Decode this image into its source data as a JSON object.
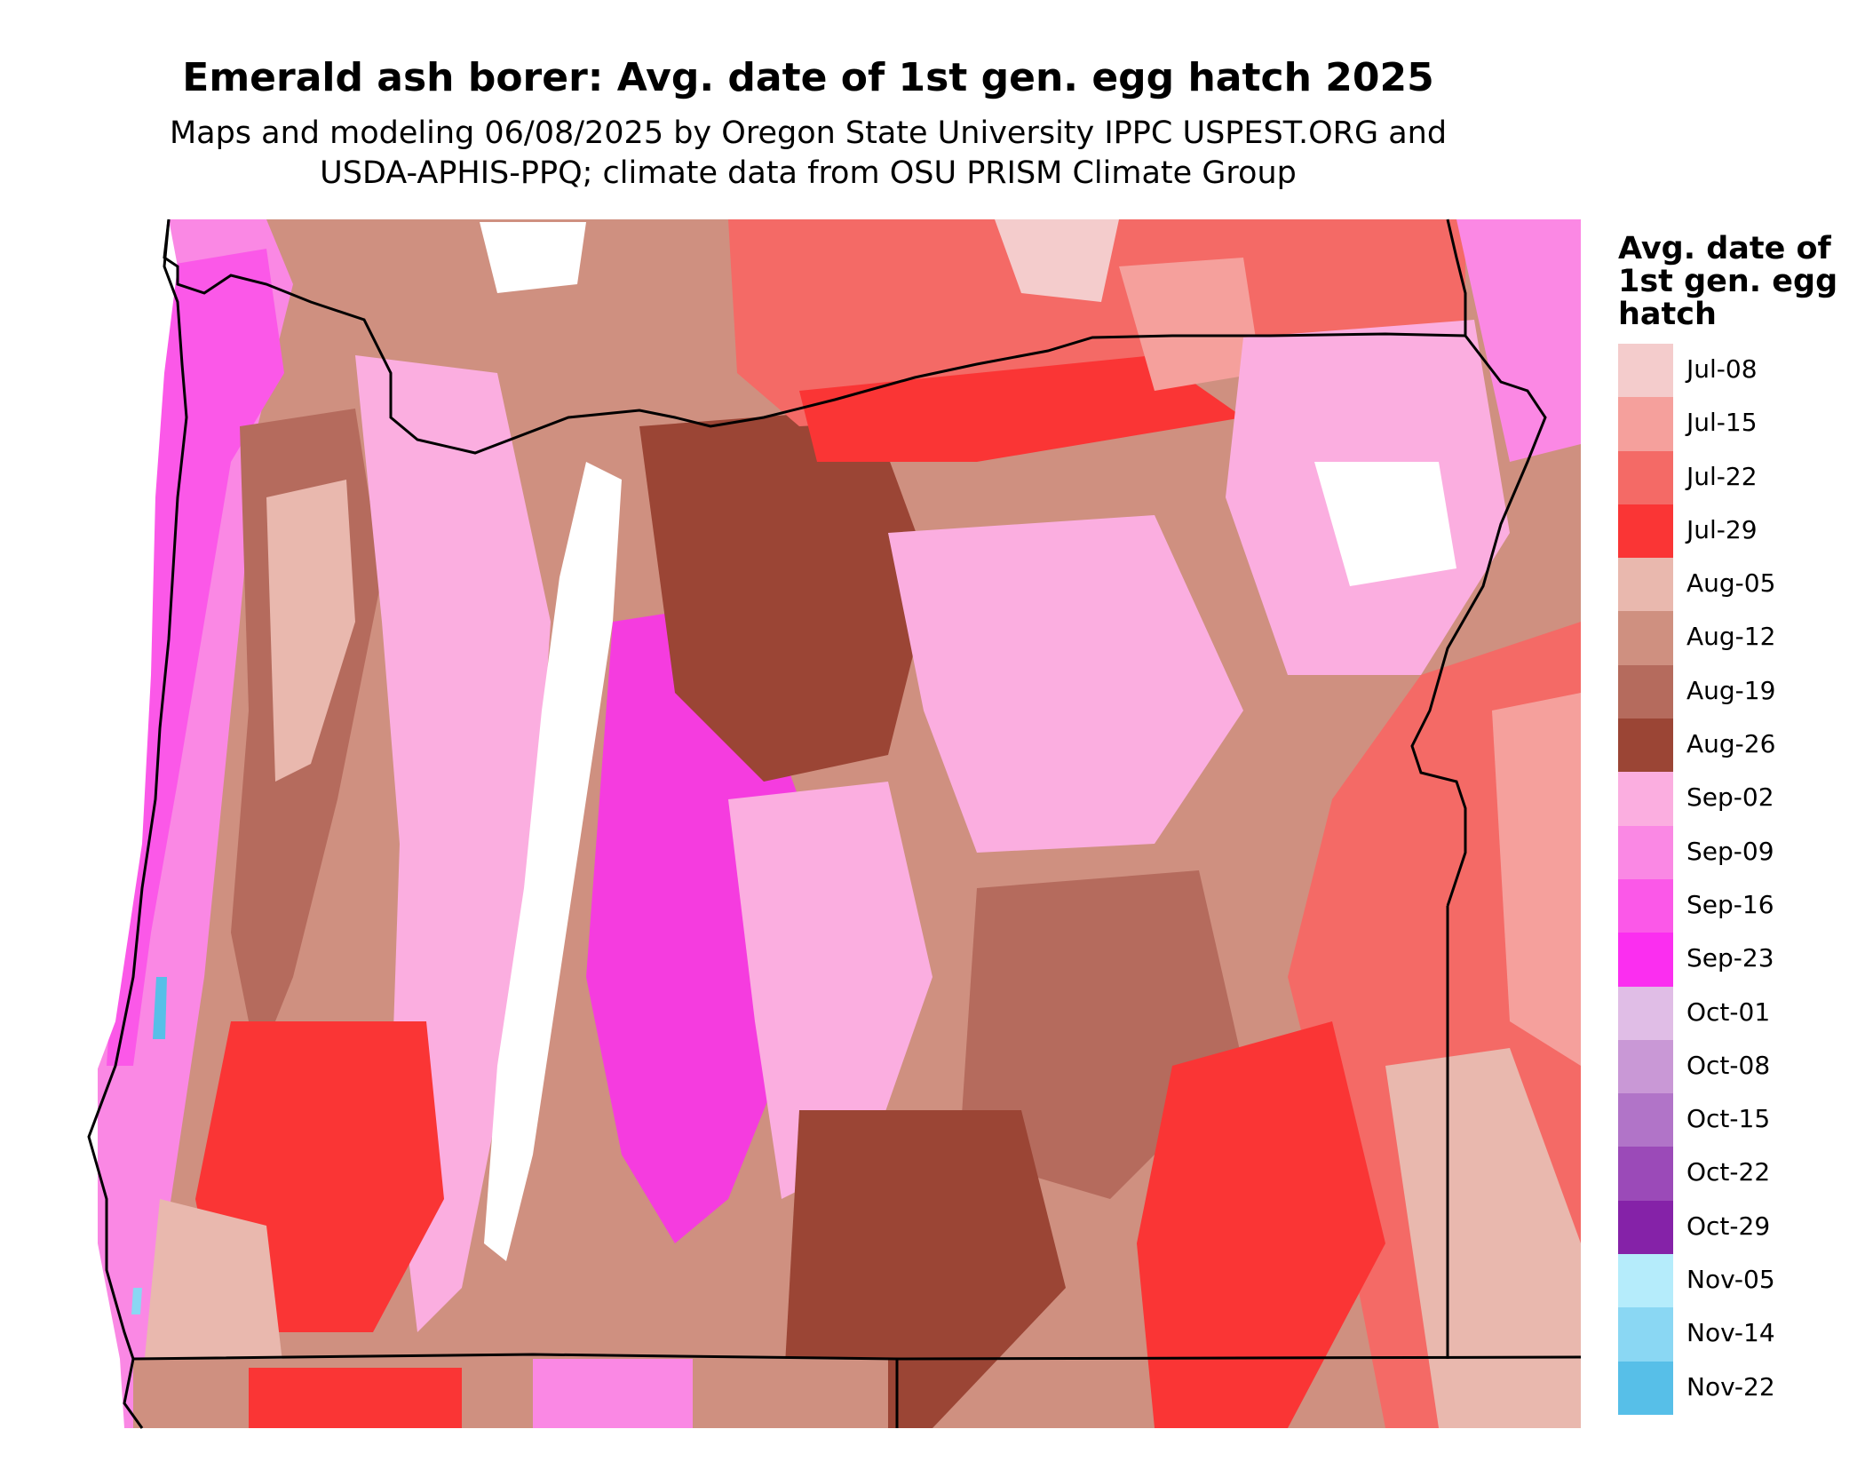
{
  "title": "Emerald ash borer: Avg. date of 1st gen. egg hatch 2025",
  "subtitle_lines": [
    "Maps and modeling 06/08/2025 by Oregon State University IPPC USPEST.ORG and",
    "USDA-APHIS-PPQ; climate data from OSU PRISM Climate Group"
  ],
  "legend": {
    "title_lines": [
      "Avg. date of",
      "1st gen. egg",
      "hatch"
    ],
    "items": [
      {
        "label": "Jul-08",
        "color": "#f4cccc"
      },
      {
        "label": "Jul-15",
        "color": "#f5a09c"
      },
      {
        "label": "Jul-22",
        "color": "#f46a66"
      },
      {
        "label": "Jul-29",
        "color": "#fa3535"
      },
      {
        "label": "Aug-05",
        "color": "#e9b8ae"
      },
      {
        "label": "Aug-12",
        "color": "#cf9080"
      },
      {
        "label": "Aug-19",
        "color": "#b56b5d"
      },
      {
        "label": "Aug-26",
        "color": "#9b4535"
      },
      {
        "label": "Sep-02",
        "color": "#fbaee0"
      },
      {
        "label": "Sep-09",
        "color": "#fa88e4"
      },
      {
        "label": "Sep-16",
        "color": "#fb58e8"
      },
      {
        "label": "Sep-23",
        "color": "#fb2ef0"
      },
      {
        "label": "Oct-01",
        "color": "#e0bde6"
      },
      {
        "label": "Oct-08",
        "color": "#c998d6"
      },
      {
        "label": "Oct-15",
        "color": "#b174c8"
      },
      {
        "label": "Oct-22",
        "color": "#9b4ab8"
      },
      {
        "label": "Oct-29",
        "color": "#8522a8"
      },
      {
        "label": "Nov-05",
        "color": "#b5ecfb"
      },
      {
        "label": "Nov-14",
        "color": "#8ad7f3"
      },
      {
        "label": "Nov-22",
        "color": "#57bfe8"
      }
    ]
  }
}
